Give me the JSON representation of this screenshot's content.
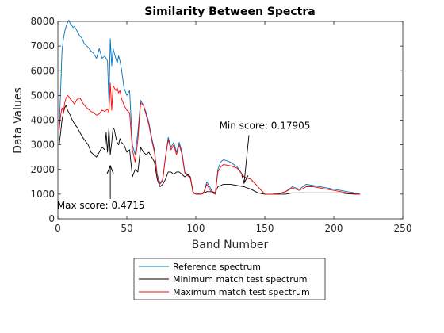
{
  "chart_data": {
    "type": "line",
    "title": "Similarity Between Spectra",
    "xlabel": "Band Number",
    "ylabel": "Data Values",
    "xlim": [
      0,
      250
    ],
    "ylim": [
      0,
      8000
    ],
    "xticks": [
      0,
      50,
      100,
      150,
      200,
      250
    ],
    "yticks": [
      0,
      1000,
      2000,
      3000,
      4000,
      5000,
      6000,
      7000,
      8000
    ],
    "grid": false,
    "legend_position": "bottom-outside",
    "series": [
      {
        "name": "Reference spectrum",
        "color": "#0072BD",
        "x": [
          1,
          2,
          3,
          4,
          5,
          6,
          7,
          8,
          9,
          10,
          11,
          12,
          13,
          14,
          15,
          16,
          17,
          18,
          19,
          20,
          22,
          24,
          26,
          28,
          30,
          32,
          34,
          36,
          37,
          38,
          39,
          40,
          41,
          42,
          43,
          44,
          45,
          46,
          48,
          50,
          52,
          54,
          56,
          58,
          60,
          62,
          64,
          66,
          68,
          70,
          72,
          74,
          76,
          78,
          80,
          82,
          84,
          86,
          88,
          90,
          92,
          94,
          96,
          98,
          100,
          102,
          104,
          106,
          108,
          110,
          112,
          114,
          116,
          118,
          120,
          125,
          130,
          135,
          140,
          145,
          150,
          155,
          160,
          165,
          170,
          175,
          180,
          185,
          190,
          195,
          200,
          205,
          210,
          215,
          219
        ],
        "y": [
          3700,
          5200,
          6800,
          7300,
          7600,
          7800,
          7950,
          8050,
          7900,
          7850,
          7750,
          7800,
          7700,
          7600,
          7500,
          7400,
          7350,
          7250,
          7100,
          7050,
          6950,
          6800,
          6700,
          6500,
          6900,
          6500,
          6600,
          6400,
          4700,
          7300,
          6200,
          6900,
          6700,
          6500,
          6300,
          6600,
          6400,
          6100,
          5300,
          5000,
          5200,
          3000,
          2600,
          3500,
          4800,
          4600,
          4300,
          3900,
          3300,
          2800,
          1800,
          1450,
          1600,
          2500,
          3300,
          2900,
          3100,
          2700,
          3100,
          2700,
          1900,
          1800,
          1700,
          1100,
          1000,
          1020,
          1000,
          1100,
          1500,
          1300,
          1100,
          1000,
          2000,
          2300,
          2400,
          2300,
          2100,
          1700,
          1600,
          1300,
          1000,
          1000,
          1020,
          1100,
          1300,
          1200,
          1400,
          1350,
          1300,
          1250,
          1200,
          1150,
          1100,
          1050,
          1000
        ]
      },
      {
        "name": "Minimum match test spectrum",
        "color": "#000000",
        "x": [
          1,
          2,
          3,
          4,
          5,
          6,
          7,
          8,
          9,
          10,
          12,
          14,
          16,
          18,
          20,
          22,
          24,
          26,
          28,
          30,
          32,
          34,
          35,
          36,
          37,
          38,
          39,
          40,
          41,
          42,
          43,
          44,
          45,
          46,
          48,
          50,
          52,
          54,
          56,
          58,
          60,
          62,
          64,
          66,
          68,
          70,
          72,
          74,
          76,
          78,
          80,
          82,
          84,
          86,
          88,
          90,
          92,
          94,
          96,
          98,
          100,
          102,
          104,
          106,
          108,
          110,
          112,
          114,
          116,
          118,
          120,
          125,
          130,
          135,
          140,
          145,
          150,
          155,
          160,
          165,
          170,
          175,
          180,
          185,
          190,
          195,
          200,
          205,
          210,
          215,
          219
        ],
        "y": [
          3000,
          3500,
          4000,
          4300,
          4500,
          4600,
          4400,
          4300,
          4200,
          4050,
          3850,
          3700,
          3500,
          3300,
          3150,
          3000,
          2700,
          2600,
          2500,
          2700,
          2900,
          2800,
          3500,
          2700,
          3700,
          2600,
          3100,
          3700,
          3600,
          3300,
          3100,
          3000,
          3250,
          3100,
          3000,
          2700,
          2800,
          1700,
          2000,
          1900,
          2900,
          2700,
          2600,
          2700,
          2500,
          2300,
          1600,
          1300,
          1400,
          1600,
          1900,
          1900,
          1800,
          1900,
          1900,
          1800,
          1700,
          1800,
          1700,
          1050,
          1000,
          1000,
          1000,
          1050,
          1100,
          1100,
          1100,
          1050,
          1300,
          1350,
          1400,
          1400,
          1350,
          1300,
          1200,
          1050,
          1000,
          1000,
          1000,
          1000,
          1050,
          1050,
          1050,
          1050,
          1050,
          1050,
          1050,
          1050,
          1020,
          1000,
          1000
        ]
      },
      {
        "name": "Maximum match test spectrum",
        "color": "#FF0000",
        "x": [
          1,
          2,
          3,
          4,
          5,
          6,
          7,
          8,
          9,
          10,
          12,
          14,
          16,
          18,
          20,
          22,
          24,
          26,
          28,
          30,
          32,
          34,
          36,
          37,
          38,
          39,
          40,
          41,
          42,
          43,
          44,
          45,
          46,
          48,
          50,
          52,
          54,
          56,
          58,
          60,
          62,
          64,
          66,
          68,
          70,
          72,
          74,
          76,
          78,
          80,
          82,
          84,
          86,
          88,
          90,
          92,
          94,
          96,
          98,
          100,
          102,
          104,
          106,
          108,
          110,
          112,
          114,
          116,
          118,
          120,
          125,
          130,
          135,
          140,
          145,
          150,
          155,
          160,
          165,
          170,
          175,
          180,
          185,
          190,
          195,
          200,
          205,
          210,
          215,
          219
        ],
        "y": [
          3600,
          4200,
          4500,
          4300,
          4700,
          4900,
          5000,
          4950,
          4850,
          4800,
          4650,
          4850,
          4900,
          4700,
          4550,
          4450,
          4350,
          4300,
          4200,
          4250,
          4400,
          4350,
          4450,
          4300,
          5500,
          4400,
          5400,
          5300,
          5200,
          5300,
          5100,
          5200,
          4900,
          4600,
          4400,
          4300,
          2800,
          2300,
          3200,
          4700,
          4600,
          4200,
          3800,
          3200,
          2700,
          1700,
          1400,
          1550,
          2500,
          3200,
          2800,
          3000,
          2600,
          3000,
          2600,
          1850,
          1750,
          1650,
          1100,
          1000,
          1000,
          1000,
          1100,
          1400,
          1200,
          1050,
          1000,
          1900,
          2100,
          2200,
          2150,
          2050,
          1700,
          1600,
          1300,
          1000,
          1000,
          1020,
          1100,
          1250,
          1150,
          1300,
          1300,
          1250,
          1200,
          1150,
          1100,
          1050,
          1020,
          1000
        ]
      }
    ],
    "annotations": [
      {
        "id": "min",
        "text": "Min score: 0.17905",
        "arrow_to": [
          135,
          1450
        ],
        "text_at": [
          150,
          3650
        ]
      },
      {
        "id": "max",
        "text": "Max score: 0.4715",
        "arrow_to": [
          38,
          2150
        ],
        "text_at": [
          38,
          420
        ]
      }
    ]
  }
}
